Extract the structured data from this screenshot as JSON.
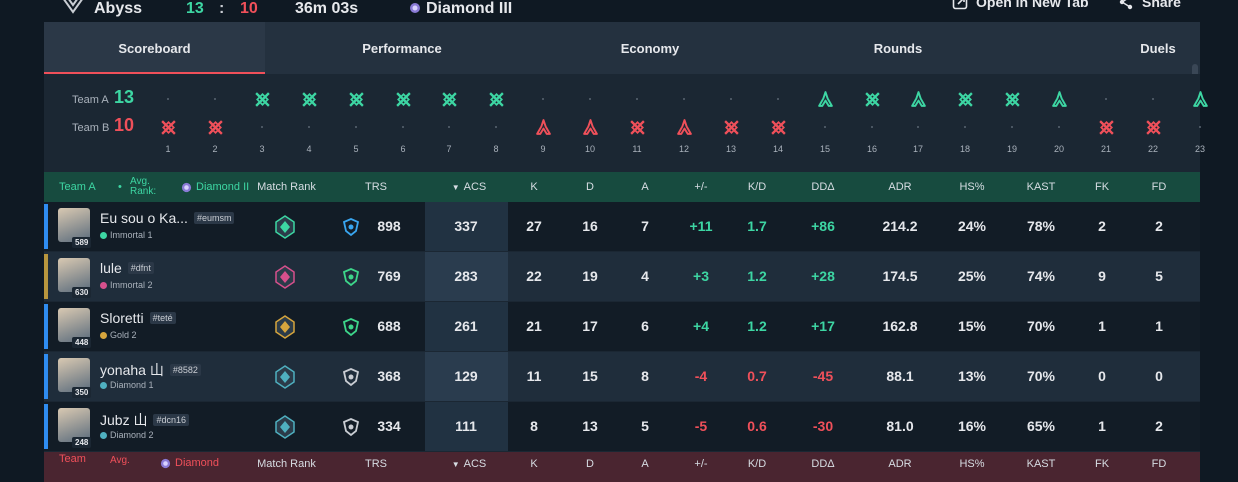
{
  "header": {
    "map": "Abyss",
    "score_a": "13",
    "score_sep": ":",
    "score_b": "10",
    "duration": "36m 03s",
    "rank": "Diamond III",
    "open_new_tab": "Open in New Tab",
    "share": "Share"
  },
  "tabs": [
    "Scoreboard",
    "Performance",
    "Economy",
    "Rounds",
    "Duels"
  ],
  "timeline": {
    "team_a_label": "Team A",
    "team_a_score": "13",
    "team_b_label": "Team B",
    "team_b_score": "10",
    "rounds": [
      {
        "n": "1",
        "winner": "b",
        "icon": "elim"
      },
      {
        "n": "2",
        "winner": "b",
        "icon": "elim"
      },
      {
        "n": "3",
        "winner": "a",
        "icon": "elim"
      },
      {
        "n": "4",
        "winner": "a",
        "icon": "elim"
      },
      {
        "n": "5",
        "winner": "a",
        "icon": "elim"
      },
      {
        "n": "6",
        "winner": "a",
        "icon": "elim"
      },
      {
        "n": "7",
        "winner": "a",
        "icon": "elim"
      },
      {
        "n": "8",
        "winner": "a",
        "icon": "elim"
      },
      {
        "n": "9",
        "winner": "b",
        "icon": "spike"
      },
      {
        "n": "10",
        "winner": "b",
        "icon": "spike"
      },
      {
        "n": "11",
        "winner": "b",
        "icon": "elim"
      },
      {
        "n": "12",
        "winner": "b",
        "icon": "spike"
      },
      {
        "n": "13",
        "winner": "b",
        "icon": "elim"
      },
      {
        "n": "14",
        "winner": "b",
        "icon": "elim"
      },
      {
        "n": "15",
        "winner": "a",
        "icon": "spike"
      },
      {
        "n": "16",
        "winner": "a",
        "icon": "elim"
      },
      {
        "n": "17",
        "winner": "a",
        "icon": "spike"
      },
      {
        "n": "18",
        "winner": "a",
        "icon": "elim"
      },
      {
        "n": "19",
        "winner": "a",
        "icon": "elim"
      },
      {
        "n": "20",
        "winner": "a",
        "icon": "spike"
      },
      {
        "n": "21",
        "winner": "b",
        "icon": "elim"
      },
      {
        "n": "22",
        "winner": "b",
        "icon": "elim"
      },
      {
        "n": "23",
        "winner": "a",
        "icon": "spike"
      }
    ]
  },
  "columns": [
    "Match Rank",
    "TRS",
    "ACS",
    "K",
    "D",
    "A",
    "+/-",
    "K/D",
    "DDΔ",
    "ADR",
    "HS%",
    "KAST",
    "FK",
    "FD"
  ],
  "team_a": {
    "label": "Team A",
    "bullet": "•",
    "avg_rank_label": "Avg. Rank:",
    "avg_rank": "Diamond II",
    "players": [
      {
        "name": "Eu sou o Ka...",
        "tag": "#eumsm",
        "level": "589",
        "rank": "Immortal 1",
        "trs": "898",
        "acs": "337",
        "k": "27",
        "d": "16",
        "a": "7",
        "pm": "+11",
        "kd": "1.7",
        "dd": "+86",
        "adr": "214.2",
        "hs": "24%",
        "kast": "78%",
        "fk": "2",
        "fd": "2",
        "accent": "#2f8cf0",
        "emblem": "#3dd6a3",
        "trs_color": "#39a6f0"
      },
      {
        "name": "lule",
        "tag": "#dfnt",
        "level": "630",
        "rank": "Immortal 2",
        "trs": "769",
        "acs": "283",
        "k": "22",
        "d": "19",
        "a": "4",
        "pm": "+3",
        "kd": "1.2",
        "dd": "+28",
        "adr": "174.5",
        "hs": "25%",
        "kast": "74%",
        "fk": "9",
        "fd": "5",
        "accent": "#b8963e",
        "emblem": "#d6508c",
        "trs_color": "#3dd68a"
      },
      {
        "name": "Sloretti",
        "tag": "#teté",
        "level": "448",
        "rank": "Gold 2",
        "trs": "688",
        "acs": "261",
        "k": "21",
        "d": "17",
        "a": "6",
        "pm": "+4",
        "kd": "1.2",
        "dd": "+17",
        "adr": "162.8",
        "hs": "15%",
        "kast": "70%",
        "fk": "1",
        "fd": "1",
        "accent": "#2f8cf0",
        "emblem": "#d6a53d",
        "trs_color": "#3dd68a"
      },
      {
        "name": "yonaha 山",
        "tag": "#8582",
        "level": "350",
        "rank": "Diamond 1",
        "trs": "368",
        "acs": "129",
        "k": "11",
        "d": "15",
        "a": "8",
        "pm": "-4",
        "kd": "0.7",
        "dd": "-45",
        "adr": "88.1",
        "hs": "13%",
        "kast": "70%",
        "fk": "0",
        "fd": "0",
        "accent": "#2f8cf0",
        "emblem": "#4fb0c0",
        "trs_color": "#c9cdd3"
      },
      {
        "name": "Jubz 山",
        "tag": "#dcn16",
        "level": "248",
        "rank": "Diamond 2",
        "trs": "334",
        "acs": "111",
        "k": "8",
        "d": "13",
        "a": "5",
        "pm": "-5",
        "kd": "0.6",
        "dd": "-30",
        "adr": "81.0",
        "hs": "16%",
        "kast": "65%",
        "fk": "1",
        "fd": "2",
        "accent": "#2f8cf0",
        "emblem": "#4fb0c0",
        "trs_color": "#c9cdd3"
      }
    ]
  },
  "team_b": {
    "label": "Team",
    "avg_rank_label": "Avg.",
    "avg_rank": "Diamond"
  },
  "colors": {
    "team_a": "#3dd6a3",
    "team_b": "#f0505a",
    "accent": "#f0505a"
  }
}
